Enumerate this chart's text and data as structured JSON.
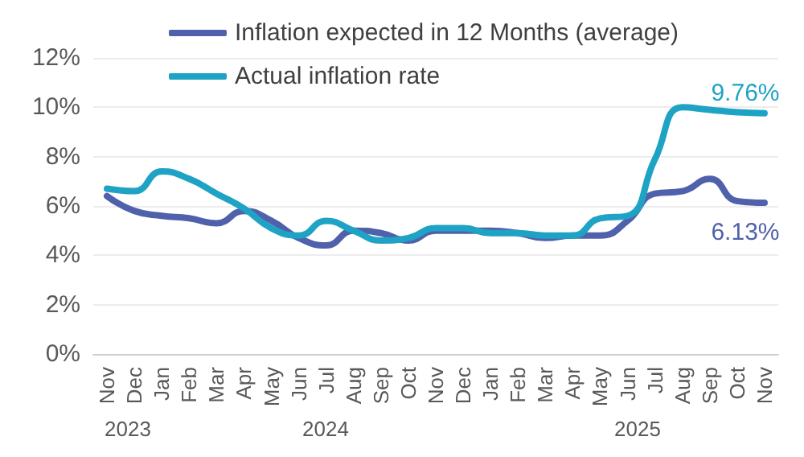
{
  "chart_data": {
    "type": "line",
    "categories": [
      "Nov",
      "Dec",
      "Jan",
      "Feb",
      "Mar",
      "Apr",
      "May",
      "Jun",
      "Jul",
      "Aug",
      "Sep",
      "Oct",
      "Nov",
      "Dec",
      "Jan",
      "Feb",
      "Mar",
      "Apr",
      "May",
      "Jun",
      "Jul",
      "Aug",
      "Sep",
      "Oct",
      "Nov"
    ],
    "series": [
      {
        "name": "Inflation expected in 12 Months (average)",
        "color": "#5061ab",
        "values": [
          6.4,
          5.8,
          5.6,
          5.5,
          5.3,
          5.8,
          5.4,
          4.7,
          4.4,
          5.0,
          4.9,
          4.6,
          5.0,
          5.0,
          5.0,
          4.9,
          4.7,
          4.8,
          4.8,
          5.4,
          6.5,
          6.6,
          7.1,
          6.2,
          6.13
        ],
        "value_labels": [
          null,
          null,
          null,
          null,
          null,
          null,
          null,
          null,
          null,
          null,
          null,
          null,
          null,
          null,
          null,
          null,
          null,
          null,
          null,
          null,
          null,
          null,
          null,
          null,
          "6.13%"
        ]
      },
      {
        "name": "Actual inflation rate",
        "color": "#1fa3c4",
        "values": [
          6.7,
          6.6,
          7.4,
          7.1,
          6.5,
          5.9,
          5.1,
          4.8,
          5.4,
          5.0,
          4.6,
          4.7,
          5.1,
          5.1,
          4.9,
          4.9,
          4.8,
          4.8,
          5.5,
          5.6,
          7.9,
          10.0,
          9.9,
          9.8,
          9.76
        ],
        "value_labels": [
          null,
          null,
          null,
          null,
          null,
          null,
          null,
          null,
          null,
          null,
          null,
          null,
          null,
          null,
          null,
          null,
          null,
          null,
          null,
          null,
          null,
          null,
          null,
          null,
          "9.76%"
        ]
      }
    ],
    "ylim": [
      0,
      12
    ],
    "yticks": [
      {
        "value": 0,
        "label": "0%"
      },
      {
        "value": 2,
        "label": "2%"
      },
      {
        "value": 4,
        "label": "4%"
      },
      {
        "value": 6,
        "label": "6%"
      },
      {
        "value": 8,
        "label": "8%"
      },
      {
        "value": 10,
        "label": "10%"
      },
      {
        "value": 12,
        "label": "12%"
      }
    ],
    "annotations": [
      "2023",
      "2024",
      "2025"
    ],
    "grid": "y",
    "legend": "top left",
    "marker": "none",
    "line_style": "solid"
  }
}
